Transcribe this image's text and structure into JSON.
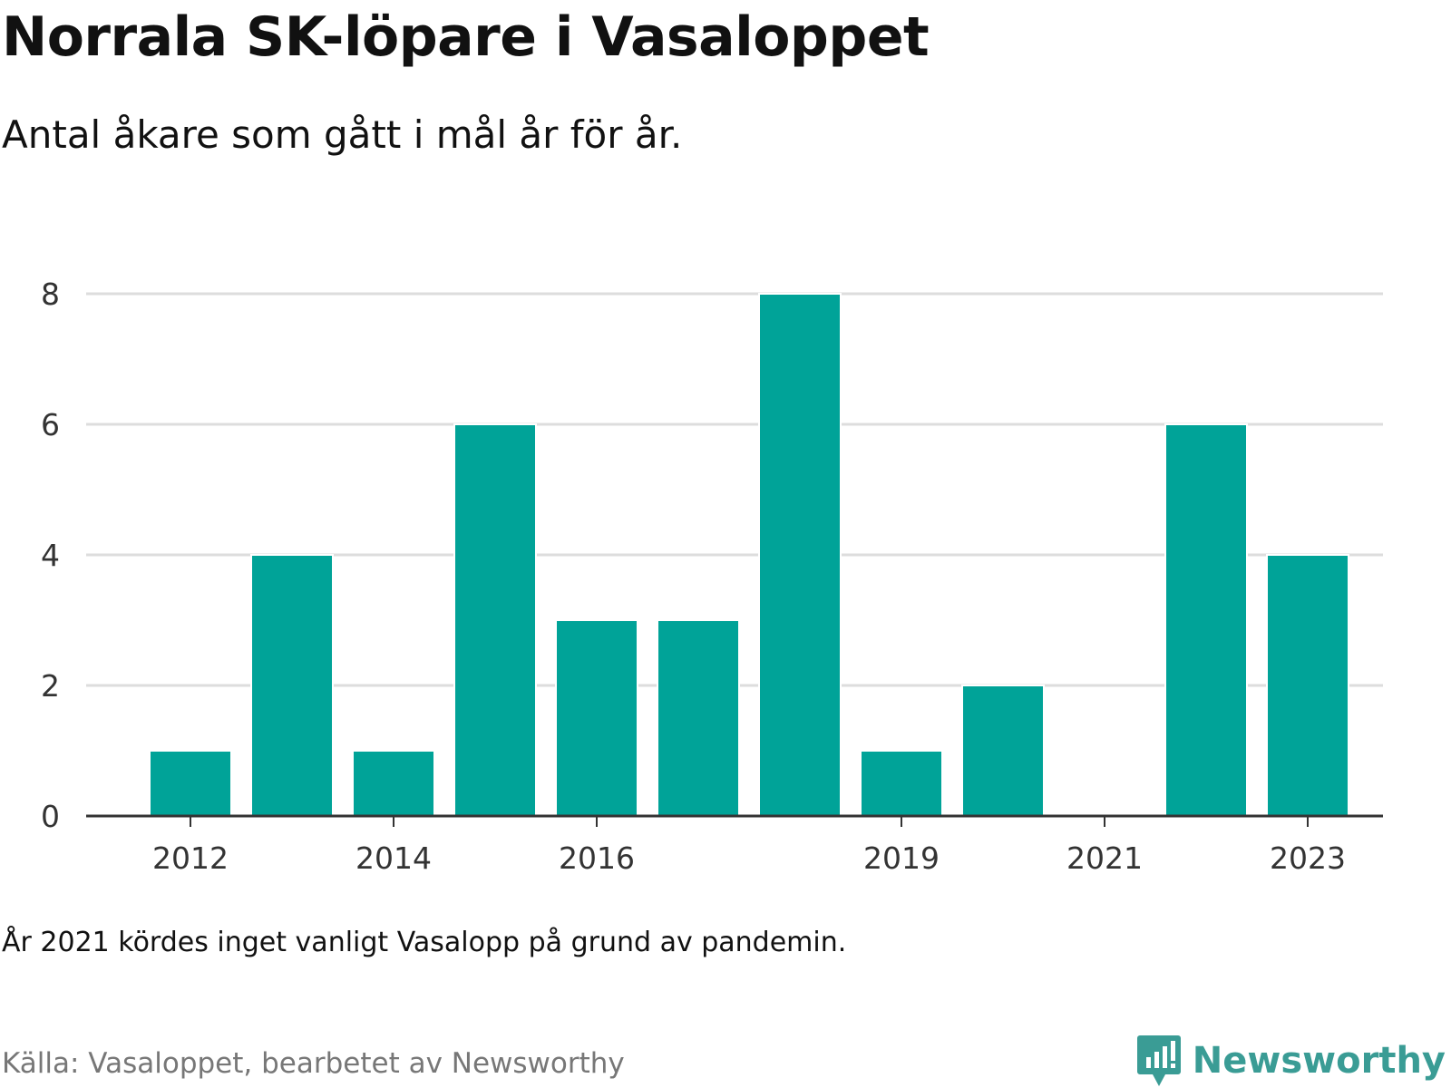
{
  "header": {
    "title": "Norrala SK-löpare i Vasaloppet",
    "subtitle": "Antal åkare som gått i mål år för år."
  },
  "footer": {
    "note": "År 2021 kördes inget vanligt Vasalopp på grund av pandemin.",
    "source": "Källa: Vasaloppet, bearbetet av Newsworthy",
    "brand": "Newsworthy"
  },
  "colors": {
    "bar": "#00a398",
    "grid": "#dddddd",
    "axis": "#333333",
    "brand": "#3a9c95"
  },
  "icons": {
    "logo": "newsworthy-logo-icon"
  },
  "chart_data": {
    "type": "bar",
    "categories": [
      2012,
      2013,
      2014,
      2015,
      2016,
      2017,
      2018,
      2019,
      2020,
      2021,
      2022,
      2023
    ],
    "values": [
      1,
      4,
      1,
      6,
      3,
      3,
      8,
      1,
      2,
      0,
      6,
      4
    ],
    "x_tick_labels": [
      "2012",
      "2014",
      "2016",
      "2019",
      "2021",
      "2023"
    ],
    "y_ticks": [
      0,
      2,
      4,
      6,
      8
    ],
    "ylim": [
      0,
      8
    ],
    "xlabel": "",
    "ylabel": "",
    "grid": true,
    "legend": "none"
  }
}
